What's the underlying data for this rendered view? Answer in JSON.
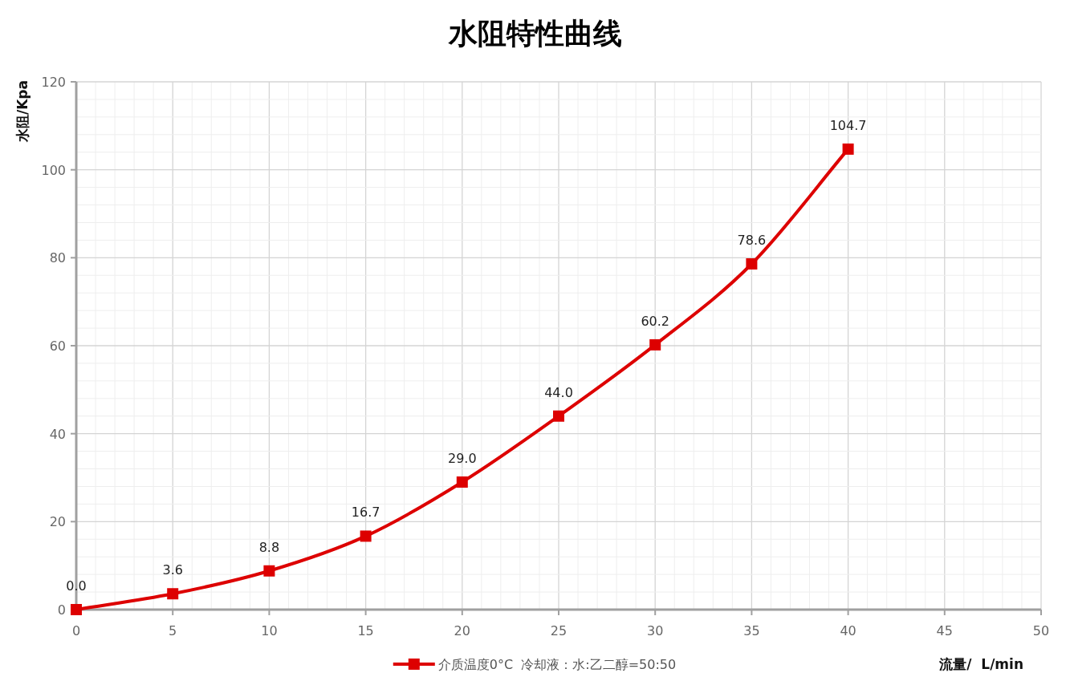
{
  "chart_data": {
    "type": "line",
    "title": "水阻特性曲线",
    "xlabel": "流量/  L/min",
    "ylabel": "水阻/Kpa",
    "x": [
      0,
      5,
      10,
      15,
      20,
      25,
      30,
      35,
      40
    ],
    "series": [
      {
        "name": "介质温度0°C  冷却液：水:乙二醇=50:50",
        "color": "#dd0000",
        "values": [
          0.0,
          3.6,
          8.8,
          16.7,
          29.0,
          44.0,
          60.2,
          78.6,
          104.7
        ],
        "value_labels": [
          "0.0",
          "3.6",
          "8.8",
          "16.7",
          "29.0",
          "44.0",
          "60.2",
          "78.6",
          "104.7"
        ]
      }
    ],
    "xlim": [
      0,
      50
    ],
    "ylim": [
      0,
      120
    ],
    "xticks": [
      0,
      5,
      10,
      15,
      20,
      25,
      30,
      35,
      40,
      45,
      50
    ],
    "yticks": [
      0,
      20,
      40,
      60,
      80,
      100,
      120
    ],
    "grid": true,
    "legend": "bottom",
    "marker": "square",
    "line_style": "solid"
  }
}
